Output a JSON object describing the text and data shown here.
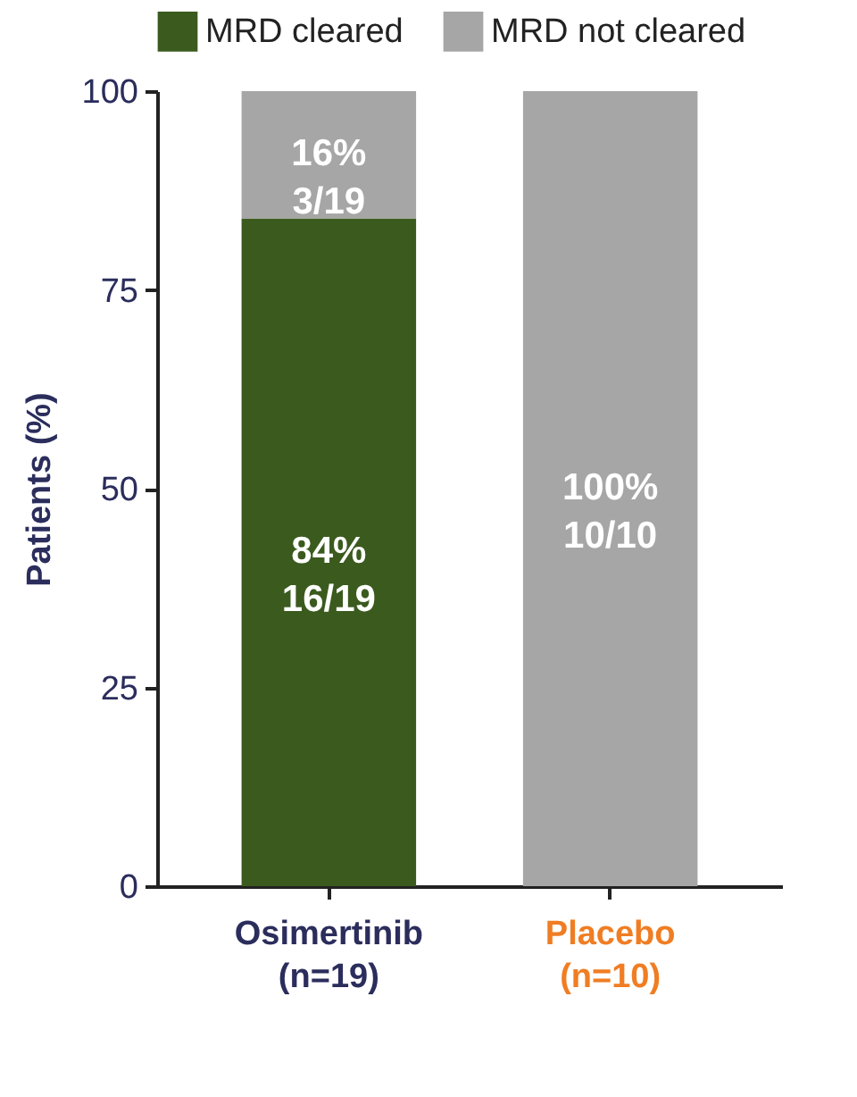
{
  "chart_data": {
    "type": "bar",
    "stacked": true,
    "ylabel": "Patients (%)",
    "categories": [
      "Osimertinib\n(n=19)",
      "Placebo\n(n=10)"
    ],
    "series": [
      {
        "name": "MRD cleared",
        "color": "#3b5a1e",
        "values": [
          84,
          0
        ],
        "value_labels": [
          "84%\n16/19",
          null
        ]
      },
      {
        "name": "MRD not cleared",
        "color": "#a6a6a6",
        "values": [
          16,
          100
        ],
        "value_labels": [
          "16%\n3/19",
          "100%\n10/10"
        ]
      }
    ],
    "ylim": [
      0,
      100
    ],
    "yticks": [
      0,
      25,
      50,
      75,
      100
    ],
    "legend": "top",
    "grid": false
  }
}
